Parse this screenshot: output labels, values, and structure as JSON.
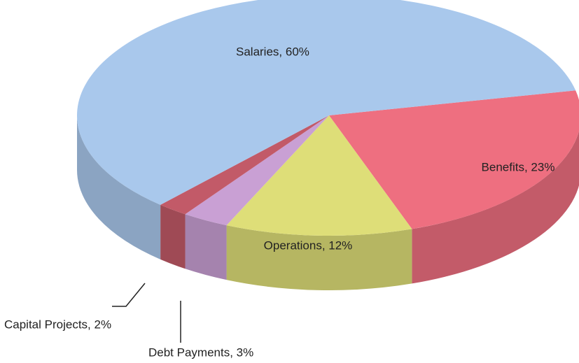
{
  "chart_data": {
    "type": "pie",
    "values": [
      60,
      23,
      12,
      3,
      2
    ],
    "value_labels": [
      "Salaries, 60%",
      "Benefits, 23%",
      "Operations, 12%",
      "Debt Payments, 3%",
      "Capital Projects, 2%"
    ],
    "colors": [
      "#a9c8ec",
      "#ee6f80",
      "#dede78",
      "#c9a0d4",
      "#c25a68"
    ]
  }
}
